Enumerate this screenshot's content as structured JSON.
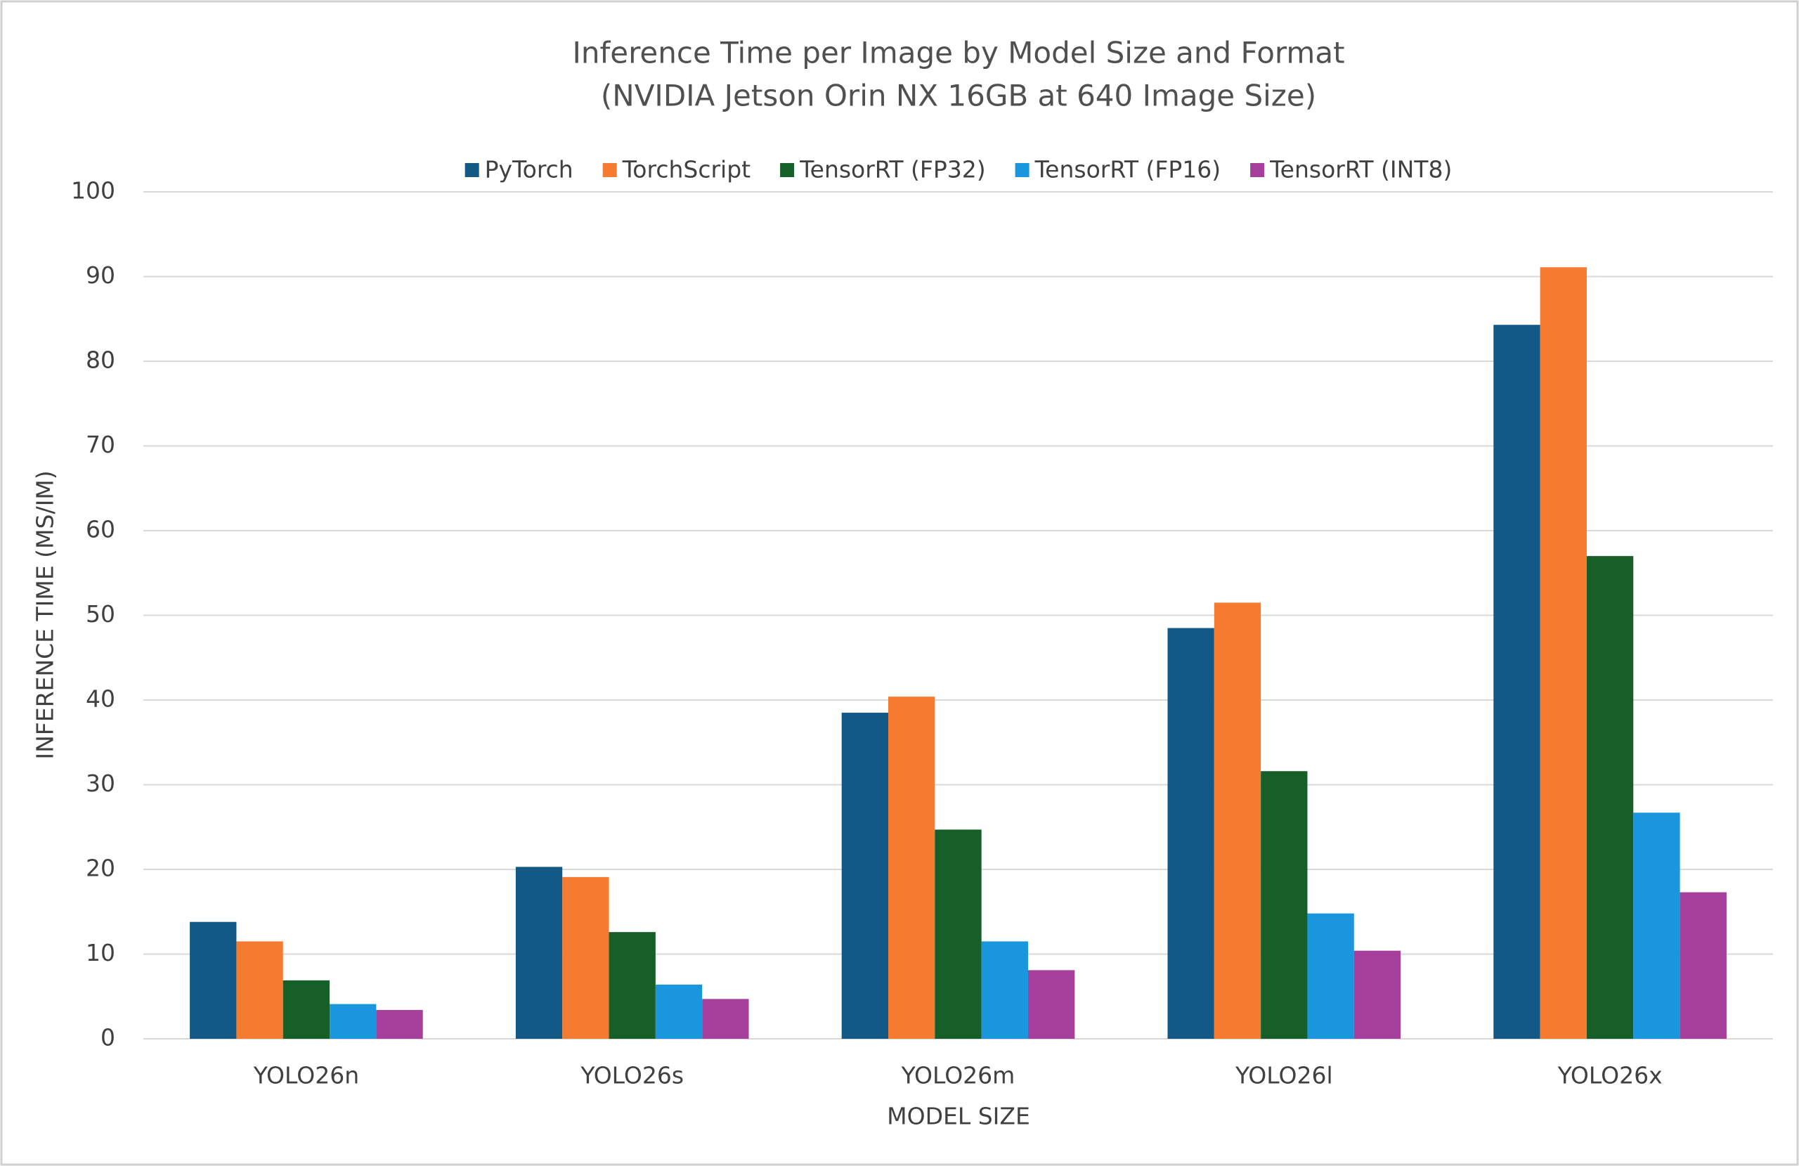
{
  "chart_data": {
    "type": "bar",
    "title": "Inference Time per Image by Model Size and Format",
    "subtitle": "(NVIDIA Jetson Orin NX 16GB at 640 Image Size)",
    "x_label": "MODEL SIZE",
    "y_label": "INFERENCE TIME (MS/IM)",
    "categories": [
      "YOLO26n",
      "YOLO26s",
      "YOLO26m",
      "YOLO26l",
      "YOLO26x"
    ],
    "series": [
      {
        "name": "PyTorch",
        "color": "#125985",
        "values": [
          13.8,
          20.3,
          38.5,
          48.5,
          84.3
        ]
      },
      {
        "name": "TorchScript",
        "color": "#f47b30",
        "values": [
          11.5,
          19.1,
          40.4,
          51.5,
          91.1
        ]
      },
      {
        "name": "TensorRT (FP32)",
        "color": "#175f28",
        "values": [
          6.9,
          12.6,
          24.7,
          31.6,
          57.0
        ]
      },
      {
        "name": "TensorRT (FP16)",
        "color": "#1a96df",
        "values": [
          4.1,
          6.4,
          11.5,
          14.8,
          26.7
        ]
      },
      {
        "name": "TensorRT (INT8)",
        "color": "#a63e9b",
        "values": [
          3.4,
          4.7,
          8.1,
          10.4,
          17.3
        ]
      }
    ],
    "ylim": [
      0,
      100
    ],
    "yticks": [
      0,
      10,
      20,
      30,
      40,
      50,
      60,
      70,
      80,
      90,
      100
    ],
    "grid": true,
    "legend": "top"
  }
}
